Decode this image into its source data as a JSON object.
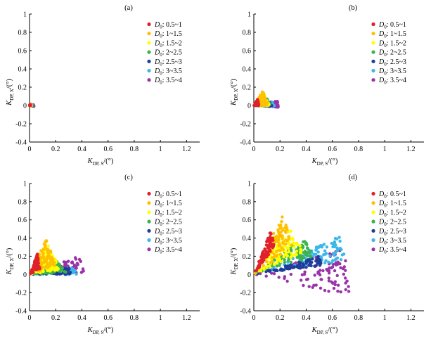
{
  "colors": {
    "D0: 0.5~1": "#e0202b",
    "D0: 1~1.5": "#ffc000",
    "D0: 1.5~2": "#ffff00",
    "D0: 2~2.5": "#3cb44b",
    "D0: 2.5~3": "#1f3c9a",
    "D0: 3~3.5": "#3cb8e8",
    "D0: 3.5~4": "#9933a8"
  },
  "chart_data": [
    {
      "type": "scatter",
      "panel_label": "(a)",
      "xlabel_main": "K",
      "xlabel_sub": "DP, S",
      "xlabel_unit": "/(°)",
      "ylabel_main": "K",
      "ylabel_sub": "DP, X",
      "ylabel_unit": "/(°)",
      "xlim": [
        0,
        1.3
      ],
      "ylim": [
        -0.4,
        1
      ],
      "x_ticks": [
        0,
        0.2,
        0.4,
        0.6,
        0.8,
        1,
        1.2
      ],
      "x_tick_labels": [
        "0",
        "0.2",
        "0.4",
        "0.6",
        "0.8",
        "1",
        "1.2"
      ],
      "y_ticks": [
        -0.4,
        -0.2,
        0,
        0.2,
        0.4,
        0.6,
        0.8,
        1
      ],
      "y_tick_labels": [
        "-0.4",
        "-0.2",
        "0",
        "0.2",
        "0.4",
        "0.6",
        "0.8",
        "1"
      ],
      "legend_position": "top-right",
      "series": [
        {
          "name": "D0: 0.5~1",
          "leg_main": "D",
          "leg_sub": "0",
          "leg_range": ": 0.5~1",
          "fan": {
            "apex": [
              0.0,
              0.0
            ],
            "tip": [
              0.005,
              0.012
            ],
            "low": [
              0.008,
              0.0
            ]
          }
        },
        {
          "name": "D0: 1~1.5",
          "leg_main": "D",
          "leg_sub": "0",
          "leg_range": ": 1~1.5",
          "fan": {
            "apex": [
              0.0,
              0.0
            ],
            "tip": [
              0.008,
              0.015
            ],
            "low": [
              0.013,
              0.0
            ]
          }
        },
        {
          "name": "D0: 1.5~2",
          "leg_main": "D",
          "leg_sub": "0",
          "leg_range": ": 1.5~2",
          "fan": {
            "apex": [
              0.0,
              0.0
            ],
            "tip": [
              0.01,
              0.015
            ],
            "low": [
              0.016,
              0.0
            ]
          }
        },
        {
          "name": "D0: 2~2.5",
          "leg_main": "D",
          "leg_sub": "0",
          "leg_range": ": 2~2.5",
          "fan": {
            "apex": [
              0.0,
              0.0
            ],
            "tip": [
              0.012,
              0.012
            ],
            "low": [
              0.02,
              -0.002
            ]
          }
        },
        {
          "name": "D0: 2.5~3",
          "leg_main": "D",
          "leg_sub": "0",
          "leg_range": ": 2.5~3",
          "fan": {
            "apex": [
              0.0,
              0.0
            ],
            "tip": [
              0.015,
              0.01
            ],
            "low": [
              0.022,
              -0.004
            ]
          }
        },
        {
          "name": "D0: 3~3.5",
          "leg_main": "D",
          "leg_sub": "0",
          "leg_range": ": 3~3.5",
          "fan": {
            "apex": [
              0.0,
              0.0
            ],
            "tip": [
              0.018,
              0.01
            ],
            "low": [
              0.025,
              -0.005
            ]
          }
        },
        {
          "name": "D0: 3.5~4",
          "leg_main": "D",
          "leg_sub": "0",
          "leg_range": ": 3.5~4",
          "fan": {
            "apex": [
              0.0,
              0.0
            ],
            "tip": [
              0.03,
              0.008
            ],
            "low": [
              0.035,
              -0.01
            ]
          }
        }
      ]
    },
    {
      "type": "scatter",
      "panel_label": "(b)",
      "xlabel_main": "K",
      "xlabel_sub": "DP, S",
      "xlabel_unit": "/(°)",
      "ylabel_main": "K",
      "ylabel_sub": "DP, X",
      "ylabel_unit": "/(°)",
      "xlim": [
        0,
        1.3
      ],
      "ylim": [
        -0.4,
        1
      ],
      "x_ticks": [
        0,
        0.2,
        0.4,
        0.6,
        0.8,
        1,
        1.2
      ],
      "x_tick_labels": [
        "0",
        "0.2",
        "0.4",
        "0.6",
        "0.8",
        "1",
        "1.2"
      ],
      "y_ticks": [
        -0.4,
        -0.2,
        0,
        0.2,
        0.4,
        0.6,
        0.8,
        1
      ],
      "y_tick_labels": [
        "-0.4",
        "-0.2",
        "0",
        "0.2",
        "0.4",
        "0.6",
        "0.8",
        "1"
      ],
      "legend_position": "top-right",
      "series": [
        {
          "name": "D0: 0.5~1",
          "leg_main": "D",
          "leg_sub": "0",
          "leg_range": ": 0.5~1",
          "fan": {
            "apex": [
              0.0,
              0.0
            ],
            "tip": [
              0.03,
              0.07
            ],
            "low": [
              0.04,
              0.0
            ]
          }
        },
        {
          "name": "D0: 1~1.5",
          "leg_main": "D",
          "leg_sub": "0",
          "leg_range": ": 1~1.5",
          "fan": {
            "apex": [
              0.0,
              0.0
            ],
            "tip": [
              0.07,
              0.16
            ],
            "low": [
              0.11,
              0.0
            ]
          }
        },
        {
          "name": "D0: 1.5~2",
          "leg_main": "D",
          "leg_sub": "0",
          "leg_range": ": 1.5~2",
          "fan": {
            "apex": [
              0.0,
              0.0
            ],
            "tip": [
              0.08,
              0.12
            ],
            "low": [
              0.12,
              0.0
            ]
          }
        },
        {
          "name": "D0: 2~2.5",
          "leg_main": "D",
          "leg_sub": "0",
          "leg_range": ": 2~2.5",
          "fan": {
            "apex": [
              0.0,
              0.0
            ],
            "tip": [
              0.1,
              0.08
            ],
            "low": [
              0.13,
              -0.01
            ]
          }
        },
        {
          "name": "D0: 2.5~3",
          "leg_main": "D",
          "leg_sub": "0",
          "leg_range": ": 2.5~3",
          "fan": {
            "apex": [
              0.0,
              0.0
            ],
            "tip": [
              0.12,
              0.04
            ],
            "low": [
              0.14,
              -0.01
            ]
          }
        },
        {
          "name": "D0: 3~3.5",
          "leg_main": "D",
          "leg_sub": "0",
          "leg_range": ": 3~3.5",
          "fan": {
            "apex": [
              0.0,
              0.0
            ],
            "tip": [
              0.14,
              0.04
            ],
            "low": [
              0.16,
              -0.01
            ]
          }
        },
        {
          "name": "D0: 3.5~4",
          "leg_main": "D",
          "leg_sub": "0",
          "leg_range": ": 3.5~4",
          "fan": {
            "apex": [
              0.0,
              0.0
            ],
            "tip": [
              0.18,
              0.05
            ],
            "low": [
              0.19,
              -0.02
            ]
          }
        }
      ]
    },
    {
      "type": "scatter",
      "panel_label": "(c)",
      "xlabel_main": "K",
      "xlabel_sub": "DP, S",
      "xlabel_unit": "/(°)",
      "ylabel_main": "K",
      "ylabel_sub": "DP, X",
      "ylabel_unit": "/(°)",
      "xlim": [
        0,
        1.3
      ],
      "ylim": [
        -0.4,
        1
      ],
      "x_ticks": [
        0,
        0.2,
        0.4,
        0.6,
        0.8,
        1,
        1.2
      ],
      "x_tick_labels": [
        "0",
        "0.2",
        "0.4",
        "0.6",
        "0.8",
        "1",
        "1.2"
      ],
      "y_ticks": [
        -0.4,
        -0.2,
        0,
        0.2,
        0.4,
        0.6,
        0.8,
        1
      ],
      "y_tick_labels": [
        "-0.4",
        "-0.2",
        "0",
        "0.2",
        "0.4",
        "0.6",
        "0.8",
        "1"
      ],
      "legend_position": "top-right",
      "series": [
        {
          "name": "D0: 0.5~1",
          "leg_main": "D",
          "leg_sub": "0",
          "leg_range": ": 0.5~1",
          "fan": {
            "apex": [
              0.0,
              0.0
            ],
            "tip": [
              0.06,
              0.23
            ],
            "low": [
              0.08,
              0.06
            ]
          }
        },
        {
          "name": "D0: 1~1.5",
          "leg_main": "D",
          "leg_sub": "0",
          "leg_range": ": 1~1.5",
          "fan": {
            "apex": [
              0.0,
              0.0
            ],
            "tip": [
              0.13,
              0.4
            ],
            "low": [
              0.2,
              0.1
            ]
          }
        },
        {
          "name": "D0: 1.5~2",
          "leg_main": "D",
          "leg_sub": "0",
          "leg_range": ": 1.5~2",
          "fan": {
            "apex": [
              0.0,
              0.0
            ],
            "tip": [
              0.14,
              0.32
            ],
            "low": [
              0.24,
              0.05
            ]
          }
        },
        {
          "name": "D0: 2~2.5",
          "leg_main": "D",
          "leg_sub": "0",
          "leg_range": ": 2~2.5",
          "fan": {
            "apex": [
              0.0,
              0.0
            ],
            "tip": [
              0.2,
              0.16
            ],
            "low": [
              0.28,
              0.02
            ]
          }
        },
        {
          "name": "D0: 2.5~3",
          "leg_main": "D",
          "leg_sub": "0",
          "leg_range": ": 2.5~3",
          "fan": {
            "apex": [
              0.0,
              0.0
            ],
            "tip": [
              0.3,
              0.08
            ],
            "low": [
              0.32,
              0.0
            ]
          }
        },
        {
          "name": "D0: 3~3.5",
          "leg_main": "D",
          "leg_sub": "0",
          "leg_range": ": 3~3.5",
          "fan": {
            "apex": [
              0.0,
              0.0
            ],
            "tip": [
              0.34,
              0.08
            ],
            "low": [
              0.36,
              0.0
            ]
          }
        },
        {
          "name": "D0: 3.5~4",
          "leg_main": "D",
          "leg_sub": "0",
          "leg_range": ": 3.5~4",
          "fan": {
            "apex": [
              0.0,
              0.0
            ],
            "tip": [
              0.38,
              0.2
            ],
            "low": [
              0.42,
              0.02
            ]
          }
        }
      ]
    },
    {
      "type": "scatter",
      "panel_label": "(d)",
      "xlabel_main": "K",
      "xlabel_sub": "DP, S",
      "xlabel_unit": "/(°)",
      "ylabel_main": "K",
      "ylabel_sub": "DP, X",
      "ylabel_unit": "/(°)",
      "xlim": [
        0,
        1.3
      ],
      "ylim": [
        -0.4,
        1
      ],
      "x_ticks": [
        0,
        0.2,
        0.4,
        0.6,
        0.8,
        1,
        1.2
      ],
      "x_tick_labels": [
        "0",
        "0.2",
        "0.4",
        "0.6",
        "0.8",
        "1",
        "1.2"
      ],
      "y_ticks": [
        -0.4,
        -0.2,
        0,
        0.2,
        0.4,
        0.6,
        0.8,
        1
      ],
      "y_tick_labels": [
        "-0.4",
        "-0.2",
        "0",
        "0.2",
        "0.4",
        "0.6",
        "0.8",
        "1"
      ],
      "legend_position": "top-right",
      "series": [
        {
          "name": "D0: 0.5~1",
          "leg_main": "D",
          "leg_sub": "0",
          "leg_range": ": 0.5~1",
          "fan": {
            "apex": [
              0.0,
              0.0
            ],
            "tip": [
              0.13,
              0.48
            ],
            "low": [
              0.16,
              0.3
            ]
          }
        },
        {
          "name": "D0: 1~1.5",
          "leg_main": "D",
          "leg_sub": "0",
          "leg_range": ": 1~1.5",
          "fan": {
            "apex": [
              0.0,
              0.0
            ],
            "tip": [
              0.22,
              0.66
            ],
            "low": [
              0.3,
              0.3
            ]
          }
        },
        {
          "name": "D0: 1.5~2",
          "leg_main": "D",
          "leg_sub": "0",
          "leg_range": ": 1.5~2",
          "fan": {
            "apex": [
              0.0,
              0.0
            ],
            "tip": [
              0.28,
              0.5
            ],
            "low": [
              0.38,
              0.25
            ]
          }
        },
        {
          "name": "D0: 2~2.5",
          "leg_main": "D",
          "leg_sub": "0",
          "leg_range": ": 2~2.5",
          "fan": {
            "apex": [
              0.0,
              0.0
            ],
            "tip": [
              0.38,
              0.4
            ],
            "low": [
              0.46,
              0.2
            ]
          }
        },
        {
          "name": "D0: 2.5~3",
          "leg_main": "D",
          "leg_sub": "0",
          "leg_range": ": 2.5~3",
          "fan": {
            "apex": [
              0.0,
              0.0
            ],
            "tip": [
              0.5,
              0.2
            ],
            "low": [
              0.52,
              0.1
            ]
          }
        },
        {
          "name": "D0: 3~3.5",
          "leg_main": "D",
          "leg_sub": "0",
          "leg_range": ": 3~3.5",
          "fan": {
            "apex": [
              0.0,
              0.0
            ],
            "tip": [
              0.66,
              0.42
            ],
            "low": [
              0.7,
              0.15
            ]
          }
        },
        {
          "name": "D0: 3.5~4",
          "leg_main": "D",
          "leg_sub": "0",
          "leg_range": ": 3.5~4",
          "fan": {
            "apex": [
              0.0,
              0.0
            ],
            "tip": [
              0.7,
              0.28
            ],
            "low": [
              0.73,
              -0.24
            ]
          }
        }
      ]
    }
  ]
}
